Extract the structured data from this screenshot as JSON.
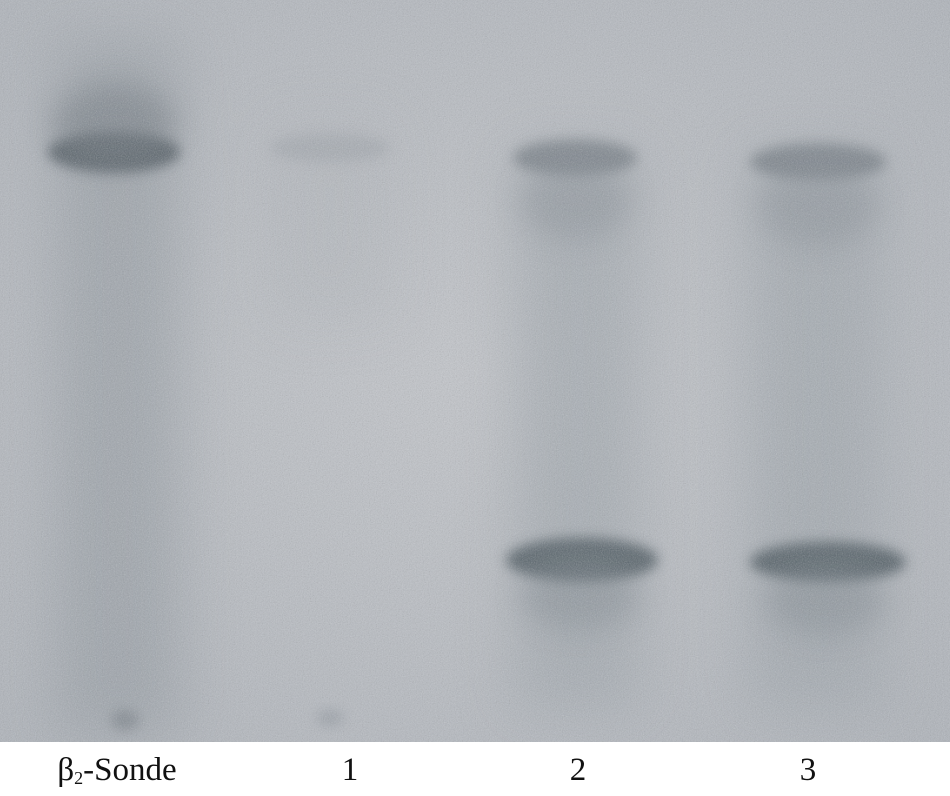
{
  "lanes": [
    {
      "id": "probe",
      "label_main": "β",
      "label_sub": "2",
      "label_suffix": "-Sonde",
      "bands": [
        "upper"
      ],
      "smear": true
    },
    {
      "id": "lane1",
      "label": "1",
      "bands": []
    },
    {
      "id": "lane2",
      "label": "2",
      "bands": [
        "upper",
        "lower"
      ]
    },
    {
      "id": "lane3",
      "label": "3",
      "bands": [
        "upper",
        "lower"
      ]
    }
  ],
  "colors": {
    "background": "#b9bdc3",
    "band": "#4f5a62",
    "label": "#111111"
  }
}
